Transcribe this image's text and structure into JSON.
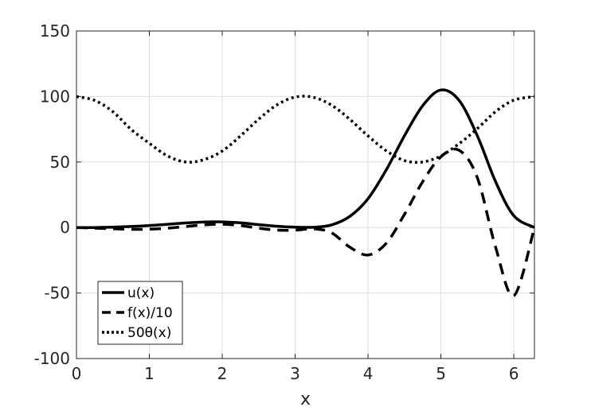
{
  "chart_data": {
    "type": "line",
    "title": "",
    "xlabel": "x",
    "ylabel": "",
    "xlim": [
      0,
      6.2832
    ],
    "ylim": [
      -100,
      150
    ],
    "xticks": [
      0,
      1,
      2,
      3,
      4,
      5,
      6
    ],
    "xtick_labels": [
      "0",
      "1",
      "2",
      "3",
      "4",
      "5",
      "6"
    ],
    "yticks": [
      -100,
      -50,
      0,
      50,
      100,
      150
    ],
    "ytick_labels": [
      "-100",
      "-50",
      "0",
      "50",
      "100",
      "150"
    ],
    "grid": true,
    "legend_position": "bottom-left",
    "x": [
      0,
      0.25,
      0.5,
      0.75,
      1.0,
      1.25,
      1.5,
      1.75,
      2.0,
      2.25,
      2.5,
      2.75,
      3.0,
      3.25,
      3.5,
      3.75,
      4.0,
      4.25,
      4.5,
      4.75,
      5.0,
      5.25,
      5.5,
      5.75,
      6.0,
      6.2832
    ],
    "series": [
      {
        "name": "u(x)",
        "style": "solid",
        "color": "#000000",
        "values": [
          0,
          0,
          0.3,
          0.8,
          1.5,
          2.5,
          3.5,
          4.2,
          4.3,
          3.6,
          2.2,
          1.0,
          0.3,
          0.2,
          2.0,
          8.5,
          22.0,
          44.0,
          70.0,
          93.0,
          105.0,
          97.0,
          70.0,
          35.0,
          9.0,
          0
        ]
      },
      {
        "name": "f(x)/10",
        "style": "dashed",
        "color": "#000000",
        "values": [
          0,
          -0.5,
          -1.0,
          -1.4,
          -1.3,
          -0.5,
          0.8,
          2.0,
          2.5,
          1.5,
          -0.5,
          -2.0,
          -2.0,
          -1.0,
          -4.0,
          -15.0,
          -21.0,
          -12.0,
          10.0,
          35.0,
          54.0,
          59.0,
          38.0,
          -15.0,
          -52.0,
          0
        ]
      },
      {
        "name": "50θ(x)",
        "style": "dotted",
        "color": "#000000",
        "values": [
          100,
          97.0,
          88.4,
          74.9,
          64.3,
          54.6,
          50.0,
          51.8,
          58.4,
          69.9,
          82.7,
          93.6,
          99.6,
          99.4,
          93.4,
          82.6,
          69.9,
          58.6,
          51.1,
          50.0,
          54.7,
          64.0,
          75.5,
          88.5,
          97.2,
          100
        ]
      }
    ]
  }
}
